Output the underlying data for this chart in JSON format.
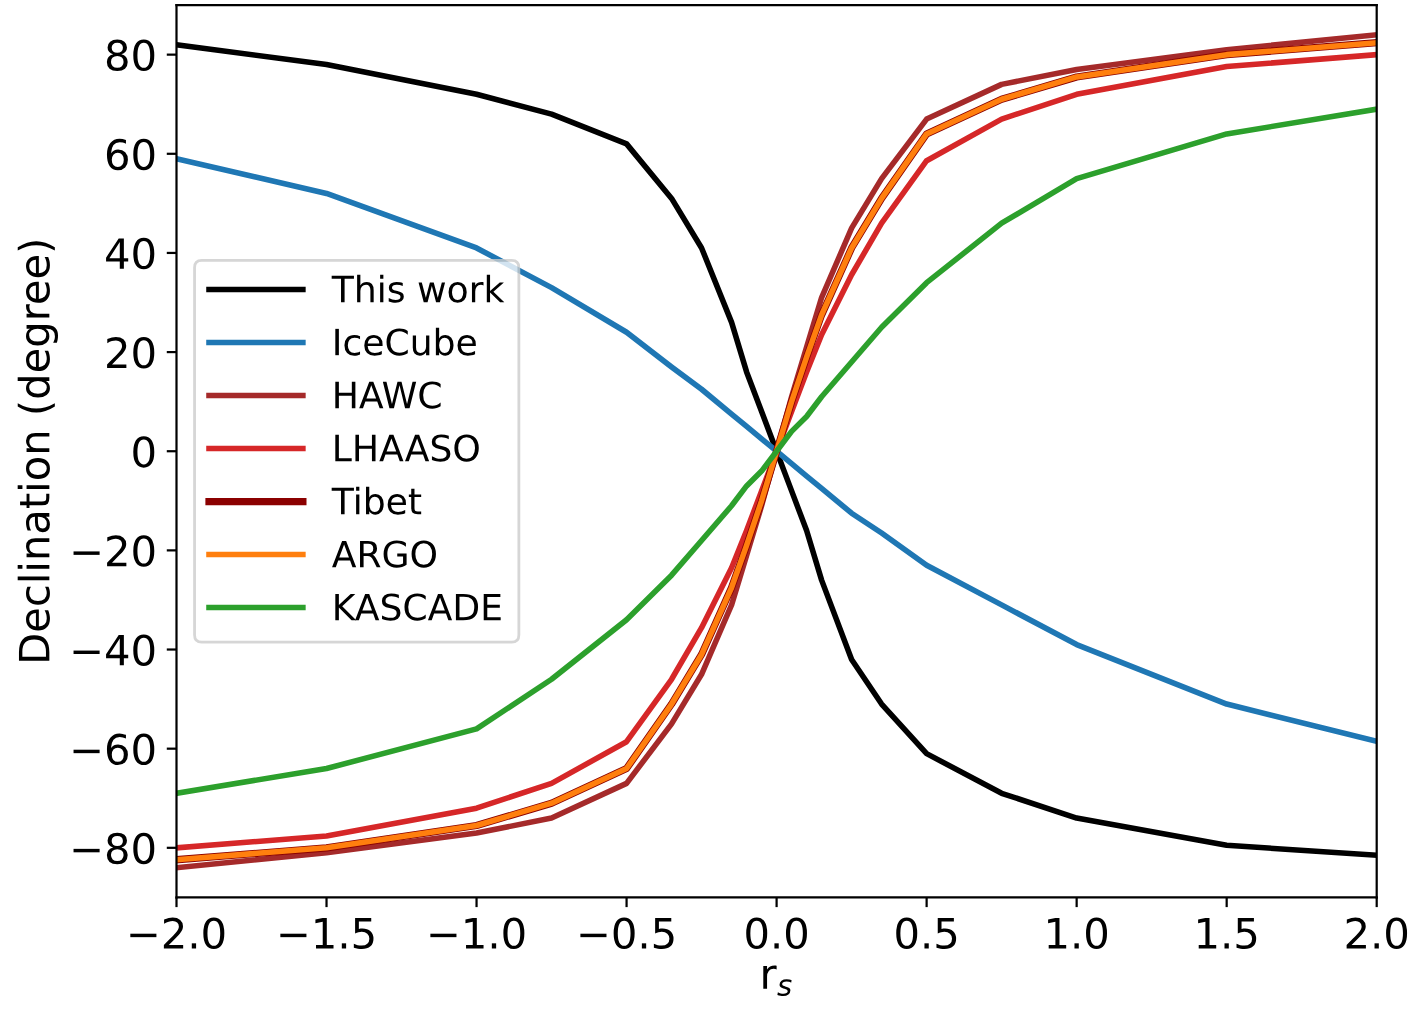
{
  "chart_data": {
    "type": "line",
    "xlabel": "r$_{s}$",
    "ylabel": "Declination (degree)",
    "x": [
      -2,
      -1.5,
      -1,
      -0.75,
      -0.5,
      -0.35,
      -0.25,
      -0.15,
      -0.1,
      -0.05,
      0,
      0.05,
      0.1,
      0.15,
      0.25,
      0.35,
      0.5,
      0.75,
      1,
      1.5,
      2
    ],
    "series": [
      {
        "name": "This work",
        "color": "#000000",
        "values": [
          82,
          78,
          72,
          68,
          62,
          51,
          41,
          26,
          16,
          8,
          0,
          -8,
          -16,
          -26,
          -42,
          -51,
          -61,
          -69,
          -74,
          -79.5,
          -81.5
        ]
      },
      {
        "name": "IceCube",
        "color": "#1f77b4",
        "values": [
          59,
          52,
          41,
          33,
          24,
          17,
          12.5,
          7.5,
          5,
          2.5,
          0,
          -2.5,
          -5,
          -7.5,
          -12.5,
          -16.5,
          -23,
          -31,
          -39,
          -51,
          -58.5
        ]
      },
      {
        "name": "HAWC",
        "color": "#a52a2a",
        "values": [
          -84,
          -81,
          -77,
          -74,
          -67,
          -55,
          -45,
          -31,
          -21,
          -11,
          0,
          11,
          21,
          31,
          45,
          55,
          67,
          74,
          77,
          81,
          84
        ]
      },
      {
        "name": "LHAASO",
        "color": "#d62728",
        "values": [
          -80,
          -77.6,
          -72,
          -67,
          -58.6,
          -46,
          -35.6,
          -23.5,
          -16,
          -8,
          0,
          8,
          16,
          23.5,
          35.6,
          46,
          58.6,
          67,
          72,
          77.6,
          80
        ]
      },
      {
        "name": "Tibet",
        "color": "#8b0000",
        "values": [
          -82.4,
          -80,
          -75.5,
          -71,
          -64,
          -51,
          -41,
          -27.5,
          -19,
          -10,
          0,
          10,
          19,
          27.5,
          41,
          51,
          64,
          71,
          75.5,
          80,
          82.4
        ]
      },
      {
        "name": "ARGO",
        "color": "#ff7f0e",
        "values": [
          -82.4,
          -80,
          -75.5,
          -71,
          -64,
          -51,
          -41,
          -27.5,
          -19,
          -10,
          0,
          10,
          19,
          27.5,
          41,
          51,
          64,
          71,
          75.5,
          80,
          82.4
        ]
      },
      {
        "name": "KASCADE",
        "color": "#2ca02c",
        "values": [
          -69,
          -64,
          -56,
          -46,
          -34,
          -25,
          -18,
          -11,
          -7,
          -4,
          0,
          4,
          7,
          11,
          18,
          25,
          34,
          46,
          55,
          64,
          69
        ]
      }
    ],
    "xlim": [
      -2,
      2
    ],
    "ylim": [
      -90,
      90
    ],
    "xticks": [
      {
        "value": -2,
        "label": "−2.0"
      },
      {
        "value": -1.5,
        "label": "−1.5"
      },
      {
        "value": -1,
        "label": "−1.0"
      },
      {
        "value": -0.5,
        "label": "−0.5"
      },
      {
        "value": 0,
        "label": "0.0"
      },
      {
        "value": 0.5,
        "label": "0.5"
      },
      {
        "value": 1,
        "label": "1.0"
      },
      {
        "value": 1.5,
        "label": "1.5"
      },
      {
        "value": 2,
        "label": "2.0"
      }
    ],
    "yticks": [
      {
        "value": -80,
        "label": "−80"
      },
      {
        "value": -60,
        "label": "−60"
      },
      {
        "value": -40,
        "label": "−40"
      },
      {
        "value": -20,
        "label": "−20"
      },
      0,
      20,
      40,
      60,
      80
    ],
    "legend": "center left",
    "grid": false,
    "marker": "none",
    "line_style": "solid"
  }
}
